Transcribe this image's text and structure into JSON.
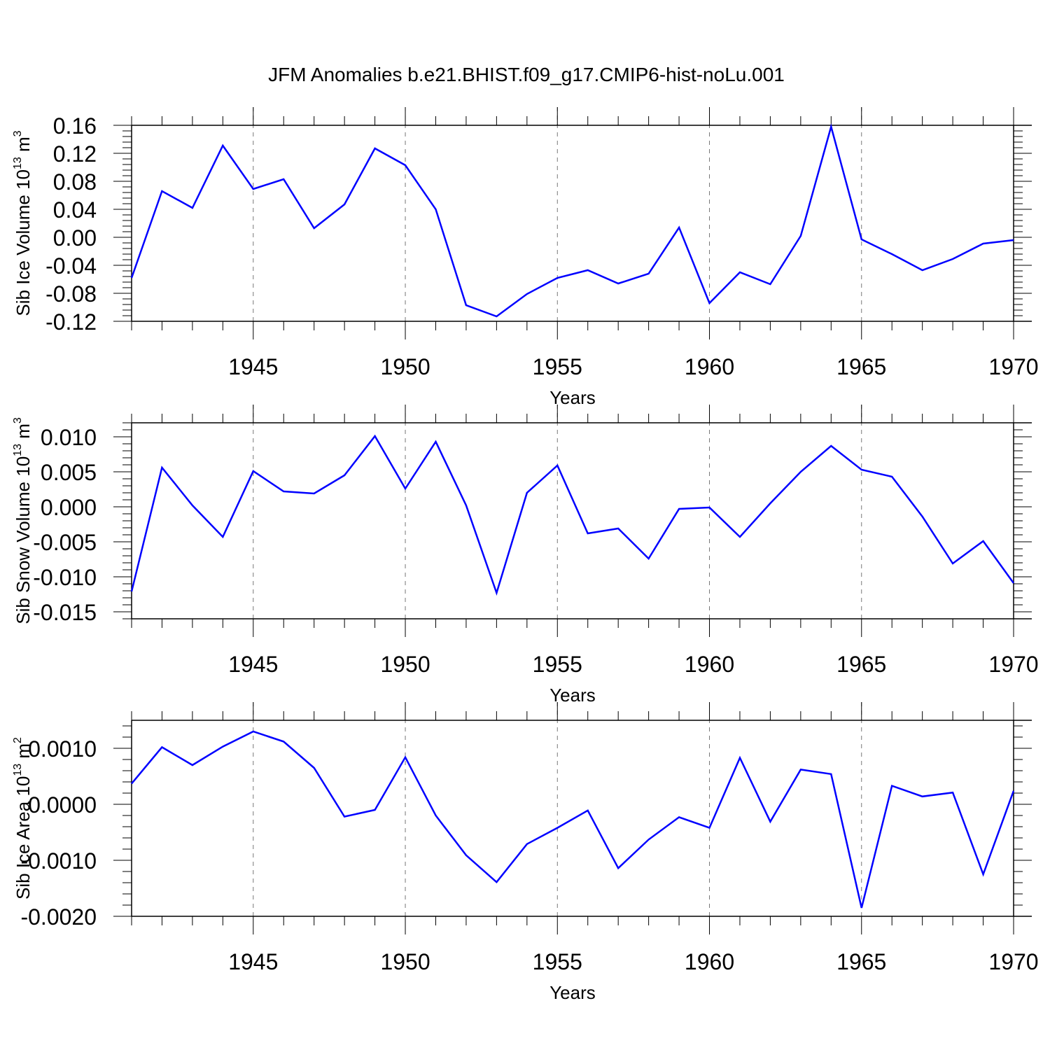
{
  "title": "JFM Anomalies b.e21.BHIST.f09_g17.CMIP6-hist-noLu.001",
  "colors": {
    "line": "#0000ff",
    "axis": "#000000",
    "grid": "#777777"
  },
  "chart_data": [
    {
      "type": "line",
      "ylabel": "Sib Ice Volume 10",
      "ylabel_exp": "13",
      "ylabel_unit": "m",
      "ylabel_unit_exp": "3",
      "xlabel": "Years",
      "xlim": [
        1941,
        1970
      ],
      "ylim": [
        -0.12,
        0.16
      ],
      "xticks": [
        1945,
        1950,
        1955,
        1960,
        1965,
        1970
      ],
      "xtick_labels": [
        "1945",
        "1950",
        "1955",
        "1960",
        "1965",
        "1970"
      ],
      "yticks": [
        0.16,
        0.12,
        0.08,
        0.04,
        0.0,
        -0.04,
        -0.08,
        -0.12
      ],
      "ytick_labels": [
        "0.16",
        "0.12",
        "0.08",
        "0.04",
        "0.00",
        "-0.04",
        "-0.08",
        "-0.12"
      ],
      "grid_x": [
        1945,
        1950,
        1955,
        1960,
        1965
      ],
      "x": [
        1941,
        1942,
        1943,
        1944,
        1945,
        1946,
        1947,
        1948,
        1949,
        1950,
        1951,
        1952,
        1953,
        1954,
        1955,
        1956,
        1957,
        1958,
        1959,
        1960,
        1961,
        1962,
        1963,
        1964,
        1965,
        1966,
        1967,
        1968,
        1969,
        1970
      ],
      "values": [
        -0.058,
        0.066,
        0.042,
        0.131,
        0.069,
        0.083,
        0.013,
        0.047,
        0.127,
        0.103,
        0.04,
        -0.097,
        -0.113,
        -0.081,
        -0.058,
        -0.047,
        -0.066,
        -0.052,
        0.014,
        -0.094,
        -0.05,
        -0.067,
        0.002,
        0.158,
        -0.003,
        -0.024,
        -0.047,
        -0.031,
        -0.009,
        -0.004
      ]
    },
    {
      "type": "line",
      "ylabel": "Sib Snow Volume 10",
      "ylabel_exp": "13",
      "ylabel_unit": "m",
      "ylabel_unit_exp": "3",
      "xlabel": "Years",
      "xlim": [
        1941,
        1970
      ],
      "ylim": [
        -0.016,
        0.012
      ],
      "xticks": [
        1945,
        1950,
        1955,
        1960,
        1965,
        1970
      ],
      "xtick_labels": [
        "1945",
        "1950",
        "1955",
        "1960",
        "1965",
        "1970"
      ],
      "yticks": [
        0.01,
        0.005,
        0.0,
        -0.005,
        -0.01,
        -0.015
      ],
      "ytick_labels": [
        "0.010",
        "0.005",
        "0.000",
        "-0.005",
        "-0.010",
        "-0.015"
      ],
      "grid_x": [
        1945,
        1950,
        1955,
        1960,
        1965
      ],
      "x": [
        1941,
        1942,
        1943,
        1944,
        1945,
        1946,
        1947,
        1948,
        1949,
        1950,
        1951,
        1952,
        1953,
        1954,
        1955,
        1956,
        1957,
        1958,
        1959,
        1960,
        1961,
        1962,
        1963,
        1964,
        1965,
        1966,
        1967,
        1968,
        1969,
        1970
      ],
      "values": [
        -0.0121,
        0.0056,
        0.0002,
        -0.0043,
        0.0051,
        0.0022,
        0.0019,
        0.0045,
        0.0101,
        0.0026,
        0.0093,
        0.0002,
        -0.0123,
        0.002,
        0.0059,
        -0.0038,
        -0.0031,
        -0.0074,
        -0.0003,
        -0.0001,
        -0.0043,
        0.0005,
        0.005,
        0.0087,
        0.0053,
        0.0043,
        -0.0014,
        -0.0081,
        -0.0049,
        -0.0109
      ]
    },
    {
      "type": "line",
      "ylabel": "Sib Ice Area 10",
      "ylabel_exp": "13",
      "ylabel_unit": "m",
      "ylabel_unit_exp": "2",
      "xlabel": "Years",
      "xlim": [
        1941,
        1970
      ],
      "ylim": [
        -0.002,
        0.0015
      ],
      "xticks": [
        1945,
        1950,
        1955,
        1960,
        1965,
        1970
      ],
      "xtick_labels": [
        "1945",
        "1950",
        "1955",
        "1960",
        "1965",
        "1970"
      ],
      "yticks": [
        0.001,
        0.0,
        -0.001,
        -0.002
      ],
      "ytick_labels": [
        "0.0010",
        "0.0000",
        "-0.0010",
        "-0.0020"
      ],
      "grid_x": [
        1945,
        1950,
        1955,
        1960,
        1965
      ],
      "x": [
        1941,
        1942,
        1943,
        1944,
        1945,
        1946,
        1947,
        1948,
        1949,
        1950,
        1951,
        1952,
        1953,
        1954,
        1955,
        1956,
        1957,
        1958,
        1959,
        1960,
        1961,
        1962,
        1963,
        1964,
        1965,
        1966,
        1967,
        1968,
        1969,
        1970
      ],
      "values": [
        0.00037,
        0.00102,
        0.0007,
        0.00103,
        0.0013,
        0.00112,
        0.00065,
        -0.00022,
        -0.0001,
        0.00084,
        -0.0002,
        -0.00091,
        -0.00139,
        -0.00071,
        -0.00042,
        -0.00011,
        -0.00114,
        -0.00063,
        -0.00023,
        -0.00042,
        0.00083,
        -0.00031,
        0.00062,
        0.00054,
        -0.00185,
        0.00033,
        0.00014,
        0.00021,
        -0.00125,
        0.00024
      ]
    }
  ]
}
